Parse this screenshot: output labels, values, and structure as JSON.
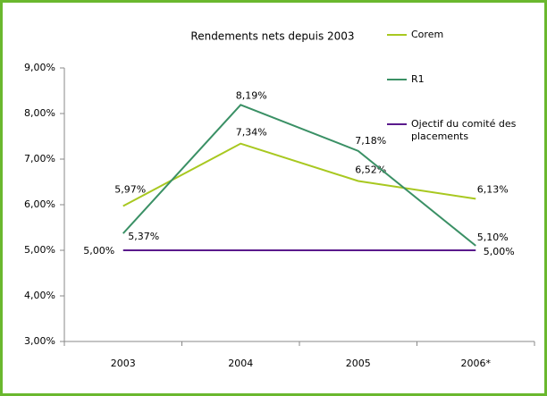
{
  "chart_data": {
    "type": "line",
    "title": "Rendements nets depuis 2003",
    "categories": [
      "2003",
      "2004",
      "2005",
      "2006*"
    ],
    "ylim": [
      3,
      9
    ],
    "yticks": [
      {
        "value": 3,
        "label": "3,00%"
      },
      {
        "value": 4,
        "label": "4,00%"
      },
      {
        "value": 5,
        "label": "5,00%"
      },
      {
        "value": 6,
        "label": "6,00%"
      },
      {
        "value": 7,
        "label": "7,00%"
      },
      {
        "value": 8,
        "label": "8,00%"
      },
      {
        "value": 9,
        "label": "9,00%"
      }
    ],
    "grid": false,
    "legend": "top-right",
    "series": [
      {
        "name": "Corem",
        "color": "#a8c820",
        "values": [
          5.97,
          7.34,
          6.52,
          6.13
        ],
        "value_labels": [
          "5,97%",
          "7,34%",
          "6,52%",
          "6,13%"
        ]
      },
      {
        "name": "R1",
        "color": "#3a9065",
        "values": [
          5.37,
          8.19,
          7.18,
          5.1
        ],
        "value_labels": [
          "5,37%",
          "8,19%",
          "7,18%",
          "5,10%"
        ]
      },
      {
        "name": "Ojectif du comité des placements",
        "color": "#5a1a8c",
        "values": [
          5,
          5,
          5,
          5
        ],
        "value_labels": [
          "5,00%",
          null,
          null,
          "5,00%"
        ]
      }
    ]
  }
}
